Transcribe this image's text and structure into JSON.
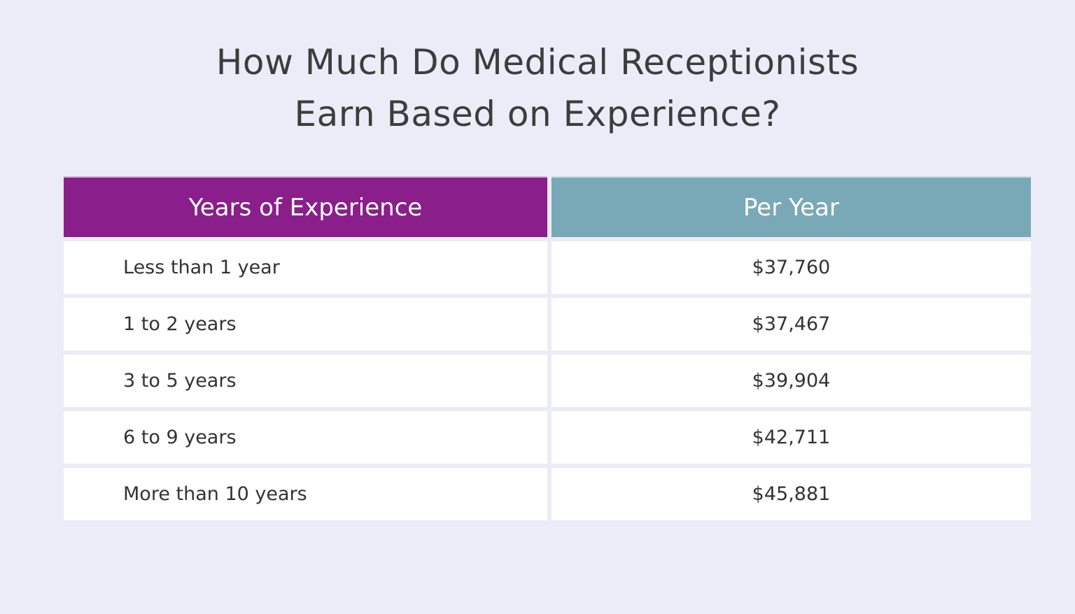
{
  "title_line1": "How Much Do Medical Receptionists",
  "title_line2": "Earn Based on Experience?",
  "colors": {
    "background": "#ececf8",
    "header_left": "#8a1e8b",
    "header_right": "#79a9b6"
  },
  "chart_data": {
    "type": "table",
    "title": "How Much Do Medical Receptionists Earn Based on Experience?",
    "columns": [
      "Years of Experience",
      "Per Year"
    ],
    "rows": [
      {
        "experience": "Less than 1 year",
        "salary": "$37,760"
      },
      {
        "experience": "1 to 2 years",
        "salary": "$37,467"
      },
      {
        "experience": "3 to 5 years",
        "salary": "$39,904"
      },
      {
        "experience": "6 to 9 years",
        "salary": "$42,711"
      },
      {
        "experience": "More than 10 years",
        "salary": "$45,881"
      }
    ]
  }
}
